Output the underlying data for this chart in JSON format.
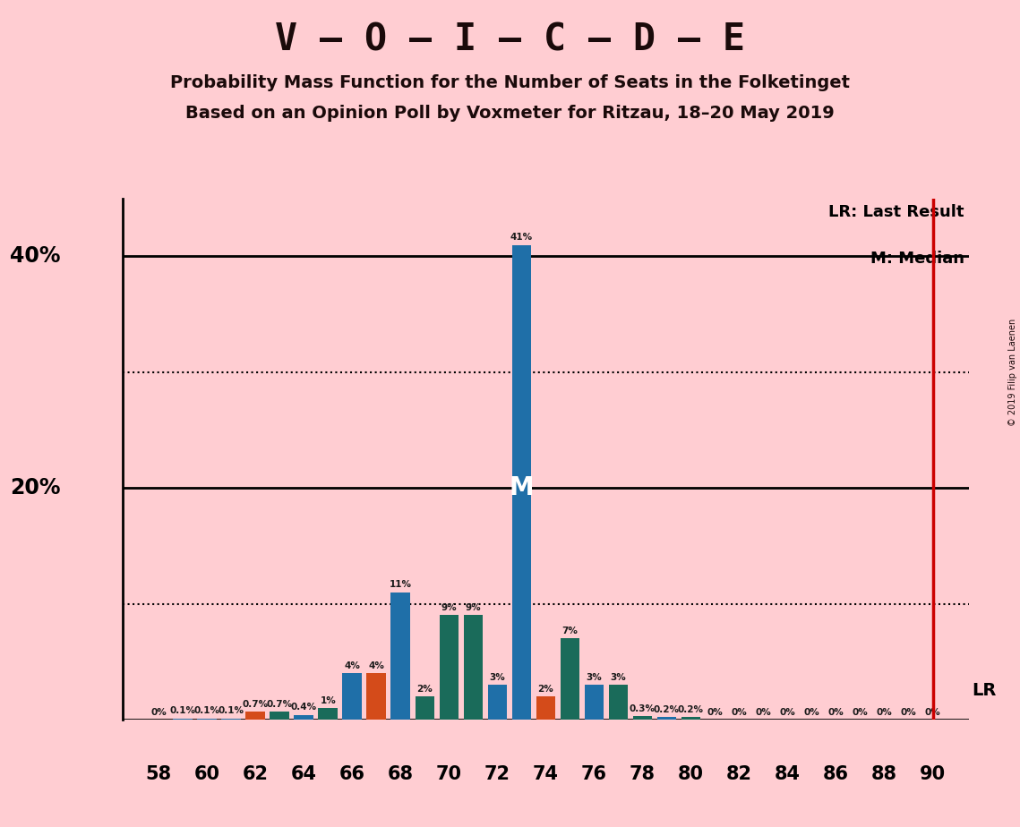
{
  "title_main": "V – O – I – C – D – E",
  "subtitle1": "Probability Mass Function for the Number of Seats in the Folketinget",
  "subtitle2": "Based on an Opinion Poll by Voxmeter for Ritzau, 18–20 May 2019",
  "copyright": "© 2019 Filip van Laenen",
  "background_color": "#FFCDD2",
  "bar_color_blue": "#1F6FA8",
  "bar_color_orange": "#D44B1A",
  "bar_color_teal": "#1A6B5A",
  "median_seat": 73,
  "lr_seat": 90,
  "seats": [
    58,
    59,
    60,
    61,
    62,
    63,
    64,
    65,
    66,
    67,
    68,
    69,
    70,
    71,
    72,
    73,
    74,
    75,
    76,
    77,
    78,
    79,
    80,
    81,
    82,
    83,
    84,
    85,
    86,
    87,
    88,
    89,
    90
  ],
  "probabilities": [
    0.0,
    0.1,
    0.1,
    0.1,
    0.7,
    0.7,
    0.4,
    1.0,
    4.0,
    4.0,
    11.0,
    2.0,
    9.0,
    9.0,
    3.0,
    41.0,
    2.0,
    7.0,
    3.0,
    3.0,
    0.3,
    0.2,
    0.2,
    0.0,
    0.0,
    0.0,
    0.0,
    0.0,
    0.0,
    0.0,
    0.0,
    0.0,
    0.0
  ],
  "bar_colors": [
    "#1F6FA8",
    "#1F6FA8",
    "#1F6FA8",
    "#1F6FA8",
    "#D44B1A",
    "#1A6B5A",
    "#1F6FA8",
    "#1A6B5A",
    "#1F6FA8",
    "#D44B1A",
    "#1F6FA8",
    "#1A6B5A",
    "#1A6B5A",
    "#1A6B5A",
    "#1F6FA8",
    "#1F6FA8",
    "#D44B1A",
    "#1A6B5A",
    "#1F6FA8",
    "#1A6B5A",
    "#1A6B5A",
    "#1F6FA8",
    "#1A6B5A",
    "#1F6FA8",
    "#1F6FA8",
    "#1F6FA8",
    "#1F6FA8",
    "#1F6FA8",
    "#1F6FA8",
    "#1F6FA8",
    "#1F6FA8",
    "#1F6FA8",
    "#1F6FA8"
  ],
  "ylim_max": 45,
  "legend_lr": "LR: Last Result",
  "legend_m": "M: Median",
  "lr_color": "#CC0000",
  "dotted_line1": 10,
  "dotted_line2": 30,
  "solid_line1": 20,
  "solid_line2": 40,
  "xlim_left": 56.5,
  "xlim_right": 91.5
}
